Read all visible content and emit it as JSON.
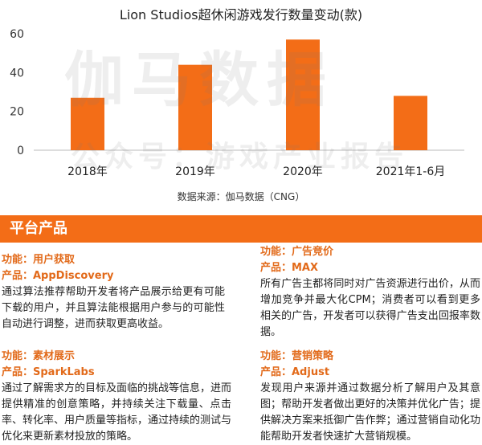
{
  "chart_data": {
    "type": "bar",
    "title": "Lion Studios超休闲游戏发行数量变动(款)",
    "categories": [
      "2018年",
      "2019年",
      "2020年",
      "2021年1-6月"
    ],
    "values": [
      27,
      44,
      57,
      28
    ],
    "ylim": [
      0,
      60
    ],
    "yticks": [
      0,
      20,
      40,
      60
    ],
    "xlabel": "",
    "ylabel": "",
    "bar_color": "#f36d17",
    "grid": false,
    "legend": "none"
  },
  "watermark": {
    "main": "伽马数据",
    "sub": "公众号：游戏产业报告"
  },
  "source": "数据来源：伽马数据（CNG）",
  "section_title": "平台产品",
  "colors": {
    "accent": "#f36d17",
    "label": "#e26a1a"
  },
  "products": [
    {
      "function": "功能：用户获取",
      "name": "产品：AppDiscovery",
      "description": "通过算法推荐帮助开发者将产品展示给更有可能下载的用户，并且算法能根据用户参与的可能性自动进行调整，进而获取更高收益。"
    },
    {
      "function": "功能：广告竞价",
      "name": "产品：MAX",
      "description": "所有广告主都将同时对广告资源进行出价，从而增加竞争并最大化CPM；消费者可以看到更多相关的广告，开发者可以获得广告支出回报率数据。"
    },
    {
      "function": "功能：素材展示",
      "name": "产品：SparkLabs",
      "description": "通过了解需求方的目标及面临的挑战等信息，进而提供精准的创意策略，并持续关注下载量、点击率、转化率、用户质量等指标，通过持续的测试与优化来更新素材投放的策略。"
    },
    {
      "function": "功能：营销策略",
      "name": "产品：Adjust",
      "description": "发现用户来源并通过数据分析了解用户及其意图；帮助开发者做出更好的决策并优化广告；提供解决方案来抵御广告作弊；通过营销自动化功能帮助开发者快速扩大营销规模。"
    }
  ]
}
